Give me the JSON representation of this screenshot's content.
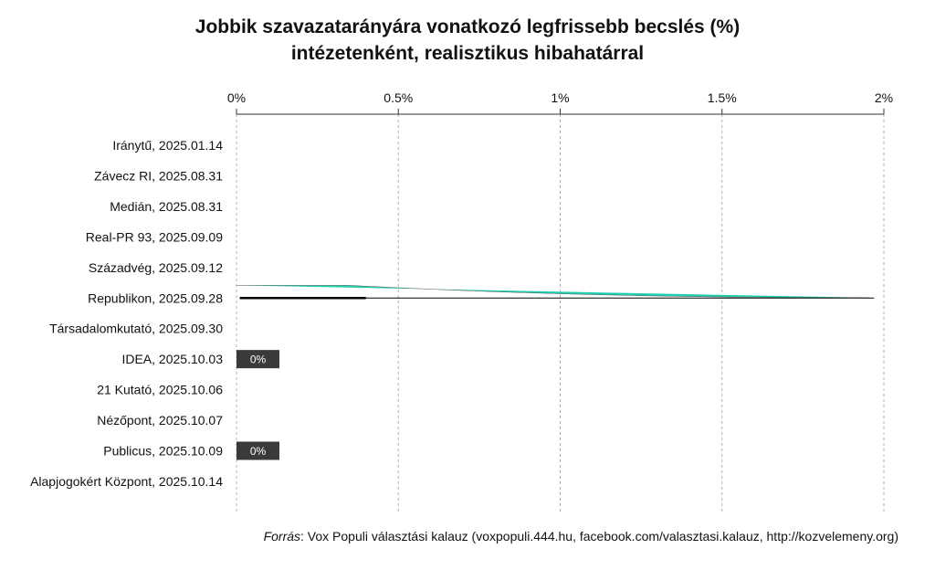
{
  "title_line1": "Jobbik szavazatarányára vonatkozó legfrissebb becslés (%)",
  "title_line2": "intézetenként, realisztikus hibahatárral",
  "source_label": "Forrás",
  "source_text": ": Vox Populi választási kalauz (voxpopuli.444.hu, facebook.com/valasztasi.kalauz, http://kozvelemeny.org)",
  "colors": {
    "violin": "#1ecfae",
    "badge": "#3a3a3a",
    "grid": "#b0b0b0"
  },
  "chart_data": {
    "type": "violin",
    "x_ticks": [
      "0%",
      "0.5%",
      "1%",
      "1.5%",
      "2%"
    ],
    "xlim": [
      0,
      2
    ],
    "grid": true,
    "categories": [
      "Iránytű, 2025.01.14",
      "Závecz RI, 2025.08.31",
      "Medián, 2025.08.31",
      "Real-PR 93, 2025.09.09",
      "Századvég, 2025.09.12",
      "Republikon, 2025.09.28",
      "Társadalomkutató, 2025.09.30",
      "IDEA, 2025.10.03",
      "21 Kutató, 2025.10.06",
      "Nézőpont, 2025.10.07",
      "Publicus, 2025.10.09",
      "Alapjogokért Központ, 2025.10.14"
    ],
    "violins": [
      {
        "category": "Republikon, 2025.09.28",
        "min": 0,
        "max": 1.97,
        "interval": [
          0.01,
          0.4
        ]
      }
    ],
    "badges": [
      {
        "category": "IDEA, 2025.10.03",
        "label": "0%"
      },
      {
        "category": "Publicus, 2025.10.09",
        "label": "0%"
      }
    ]
  }
}
